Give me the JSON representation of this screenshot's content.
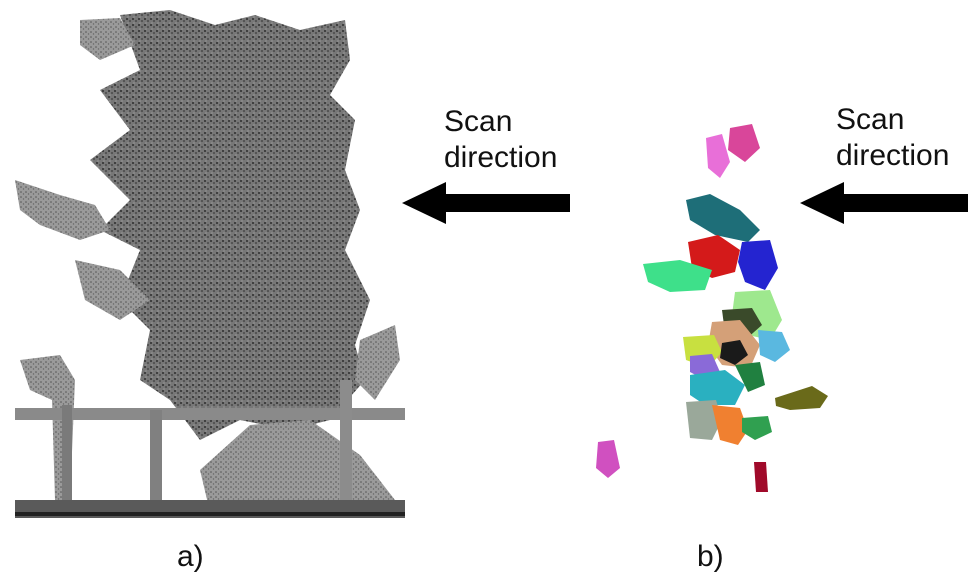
{
  "panel_a": {
    "scan_text_line1": "Scan",
    "scan_text_line2": "direction",
    "caption": "a)"
  },
  "panel_b": {
    "scan_text_line1": "Scan",
    "scan_text_line2": "direction",
    "caption": "b)"
  },
  "colors": {
    "point_cloud_gray": "#6e6e6e",
    "point_cloud_dark": "#3a3a3a",
    "arrow": "#000000",
    "segments": [
      "#d9469a",
      "#e86fd8",
      "#1e6e78",
      "#d41a1a",
      "#2424d0",
      "#3ee08a",
      "#9ee88e",
      "#5a5a3a",
      "#d4a078",
      "#c8e040",
      "#2ab0c0",
      "#f08030",
      "#6a6a1a",
      "#a00a2a",
      "#d050c0",
      "#208040"
    ]
  }
}
